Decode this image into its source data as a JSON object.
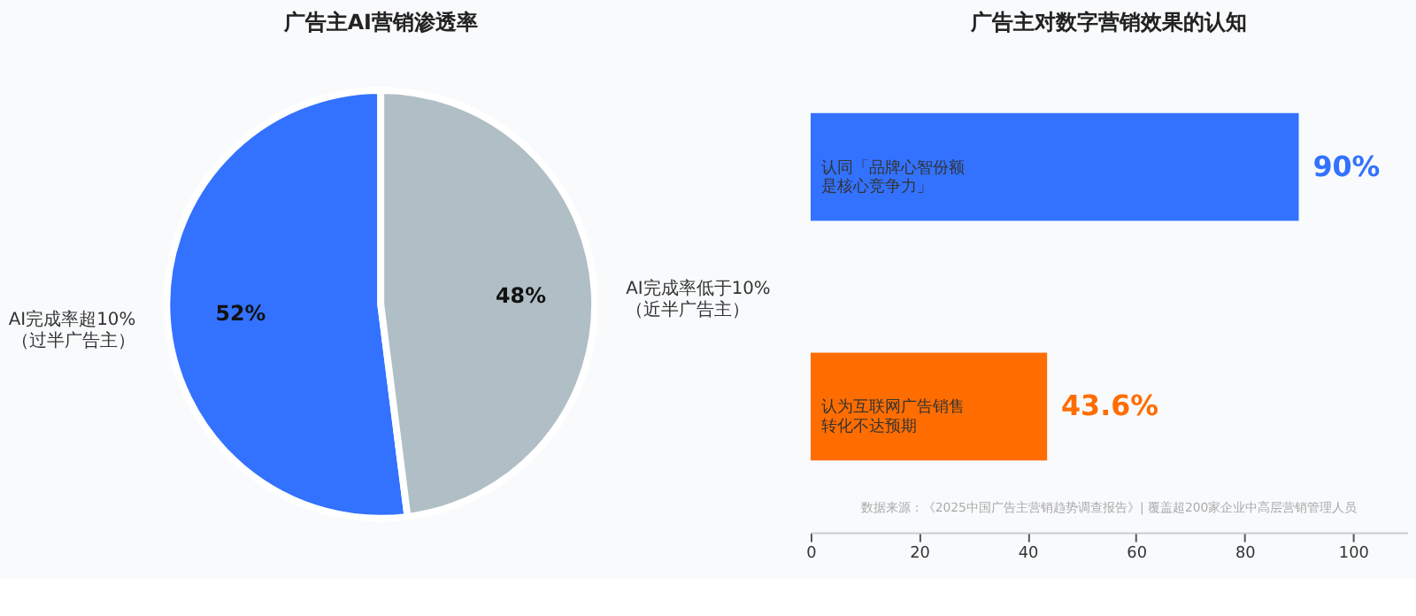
{
  "chart_data": [
    {
      "type": "pie",
      "title": "广告主AI营销渗透率",
      "categories": [
        "AI完成率超10%\n（过半广告主）",
        "AI完成率低于10%\n（近半广告主）"
      ],
      "values": [
        52,
        48
      ],
      "colors": [
        "#3372ff",
        "#b0bec5"
      ],
      "value_labels": [
        "52%",
        "48%"
      ],
      "legend": false
    },
    {
      "type": "bar",
      "orientation": "horizontal",
      "title": "广告主对数字营销效果的认知",
      "categories": [
        "认同「品牌心智份额是核心竞争力」",
        "认为互联网广告销售转化不达预期"
      ],
      "values": [
        90,
        43.6
      ],
      "colors": [
        "#3372ff",
        "#ff6d00"
      ],
      "value_labels": [
        "90%",
        "43.6%"
      ],
      "xlim": [
        0,
        110
      ],
      "xticks": [
        0,
        20,
        40,
        60,
        80,
        100
      ],
      "tick_labels": "x",
      "grid": false,
      "annotations": [
        "数据来源：《2025中国广告主营销趋势调查报告》| 覆盖超200家企业中高层营销管理人员"
      ]
    }
  ]
}
